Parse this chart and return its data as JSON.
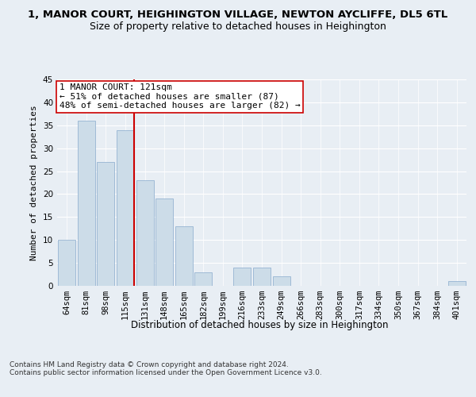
{
  "title_line1": "1, MANOR COURT, HEIGHINGTON VILLAGE, NEWTON AYCLIFFE, DL5 6TL",
  "title_line2": "Size of property relative to detached houses in Heighington",
  "xlabel": "Distribution of detached houses by size in Heighington",
  "ylabel": "Number of detached properties",
  "categories": [
    "64sqm",
    "81sqm",
    "98sqm",
    "115sqm",
    "131sqm",
    "148sqm",
    "165sqm",
    "182sqm",
    "199sqm",
    "216sqm",
    "233sqm",
    "249sqm",
    "266sqm",
    "283sqm",
    "300sqm",
    "317sqm",
    "334sqm",
    "350sqm",
    "367sqm",
    "384sqm",
    "401sqm"
  ],
  "values": [
    10,
    36,
    27,
    34,
    23,
    19,
    13,
    3,
    0,
    4,
    4,
    2,
    0,
    0,
    0,
    0,
    0,
    0,
    0,
    0,
    1
  ],
  "bar_color": "#ccdce8",
  "bar_edge_color": "#88aacc",
  "annotation_line1": "1 MANOR COURT: 121sqm",
  "annotation_line2": "← 51% of detached houses are smaller (87)",
  "annotation_line3": "48% of semi-detached houses are larger (82) →",
  "annotation_box_color": "#ffffff",
  "annotation_box_edge_color": "#cc0000",
  "ref_line_color": "#cc0000",
  "ylim": [
    0,
    45
  ],
  "yticks": [
    0,
    5,
    10,
    15,
    20,
    25,
    30,
    35,
    40,
    45
  ],
  "bg_color": "#e8eef4",
  "plot_bg_color": "#e8eef4",
  "footer": "Contains HM Land Registry data © Crown copyright and database right 2024.\nContains public sector information licensed under the Open Government Licence v3.0.",
  "title_fontsize": 9.5,
  "subtitle_fontsize": 9,
  "xlabel_fontsize": 8.5,
  "ylabel_fontsize": 8,
  "tick_fontsize": 7.5,
  "annotation_fontsize": 8,
  "footer_fontsize": 6.5
}
